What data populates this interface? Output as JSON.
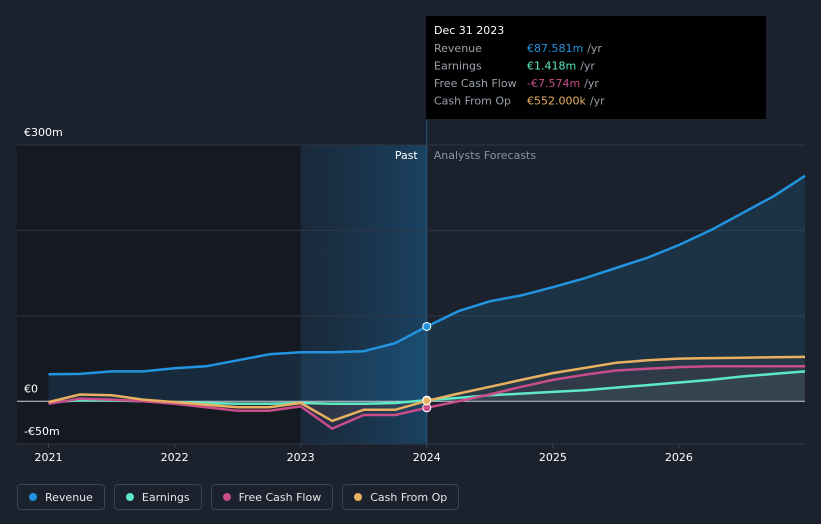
{
  "chart_data": {
    "type": "line",
    "x": [
      2021,
      2021.25,
      2021.5,
      2021.75,
      2022,
      2022.25,
      2022.5,
      2022.75,
      2023,
      2023.25,
      2023.5,
      2023.75,
      2024,
      2024.25,
      2024.5,
      2024.75,
      2025,
      2025.25,
      2025.5,
      2025.75,
      2026,
      2026.25,
      2026.5,
      2026.75,
      2027
    ],
    "series": [
      {
        "name": "Revenue",
        "color": "#2394df",
        "values": [
          31.6,
          32,
          35,
          35,
          38.7,
          41,
          48,
          55,
          57.4,
          57.4,
          58.6,
          68,
          87.581,
          105.5,
          117,
          124,
          133.6,
          144,
          156,
          168,
          183,
          200,
          220,
          240,
          264
        ]
      },
      {
        "name": "Earnings",
        "color": "#5ee8c5",
        "values": [
          -1,
          1,
          1,
          0,
          -1,
          -2,
          -3,
          -3,
          -2,
          -3,
          -3,
          -2,
          1.418,
          4,
          7,
          9,
          11,
          13,
          16,
          19,
          22,
          25,
          29,
          32,
          35
        ]
      },
      {
        "name": "Free Cash Flow",
        "color": "#c94d8a",
        "values": [
          -3,
          3,
          2,
          0,
          -3,
          -7,
          -11,
          -11,
          -6,
          -32,
          -16,
          -16,
          -7.574,
          0,
          8,
          17,
          25,
          31,
          36,
          38,
          40,
          41,
          41,
          41,
          41
        ]
      },
      {
        "name": "Cash From Op",
        "color": "#e8b060",
        "values": [
          -1,
          8,
          7,
          2,
          -1,
          -4,
          -7,
          -7,
          -2,
          -23,
          -10,
          -10,
          0.552,
          9,
          17,
          25,
          33,
          39,
          45,
          48,
          50,
          50.5,
          51,
          51.5,
          52
        ]
      }
    ],
    "xlim": [
      2020.75,
      2027
    ],
    "xticks": [
      2021,
      2022,
      2023,
      2024,
      2025,
      2026
    ],
    "ylim": [
      -50,
      300
    ],
    "yticks": [
      {
        "value": -50,
        "label": "-€50m"
      },
      {
        "value": 0,
        "label": "€0"
      },
      {
        "value": 100,
        "label": null
      },
      {
        "value": 200,
        "label": null
      },
      {
        "value": 300,
        "label": "€300m"
      }
    ],
    "highlight": [
      2023,
      2024
    ],
    "past_label": "Past",
    "forecast_label": "Analysts Forecasts",
    "tooltip": {
      "title": "Dec 31 2023",
      "rows": [
        {
          "label": "Revenue",
          "value": "€87.581m",
          "unit": "/yr"
        },
        {
          "label": "Earnings",
          "value": "€1.418m",
          "unit": "/yr"
        },
        {
          "label": "Free Cash Flow",
          "value": "-€7.574m",
          "unit": "/yr"
        },
        {
          "label": "Cash From Op",
          "value": "€552.000k",
          "unit": "/yr"
        }
      ]
    }
  }
}
